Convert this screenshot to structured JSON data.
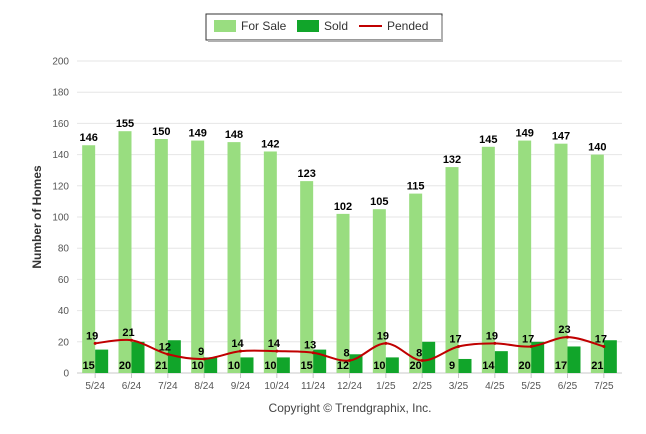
{
  "chart_data": {
    "type": "bar",
    "title": "",
    "xlabel": "",
    "ylabel": "Number of Homes",
    "ylim": [
      0,
      200
    ],
    "yticks": [
      0,
      20,
      40,
      60,
      80,
      100,
      120,
      140,
      160,
      180,
      200
    ],
    "grid": true,
    "legend_position": "top-center",
    "categories": [
      "5/24",
      "6/24",
      "7/24",
      "8/24",
      "9/24",
      "10/24",
      "11/24",
      "12/24",
      "1/25",
      "2/25",
      "3/25",
      "4/25",
      "5/25",
      "6/25",
      "7/25"
    ],
    "series": [
      {
        "name": "For Sale",
        "type": "bar",
        "color": "#99dd80",
        "values": [
          146,
          155,
          150,
          149,
          148,
          142,
          123,
          102,
          105,
          115,
          132,
          145,
          149,
          147,
          140
        ]
      },
      {
        "name": "Sold",
        "type": "bar",
        "color": "#11a52a",
        "values": [
          15,
          20,
          21,
          10,
          10,
          10,
          15,
          12,
          10,
          20,
          9,
          14,
          20,
          17,
          21
        ]
      },
      {
        "name": "Pended",
        "type": "line",
        "color": "#c00000",
        "values": [
          19,
          21,
          12,
          9,
          14,
          14,
          13,
          8,
          19,
          8,
          17,
          19,
          17,
          23,
          17
        ]
      }
    ]
  },
  "footer": {
    "copyright": "Copyright © Trendgraphix, Inc."
  }
}
